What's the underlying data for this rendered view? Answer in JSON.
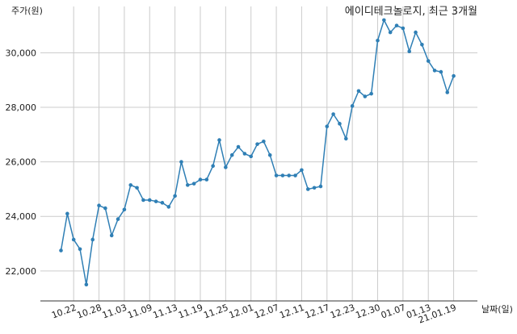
{
  "chart_data": {
    "type": "line",
    "title": "에이디테크놀로지, 최근 3개월",
    "ylabel": "주가(원)",
    "xlabel": "날짜(일)",
    "ylim": [
      20900,
      31700
    ],
    "yticks": [
      22000,
      24000,
      26000,
      28000,
      30000
    ],
    "ytick_labels": [
      "22,000",
      "24,000",
      "26,000",
      "28,000",
      "30,000"
    ],
    "xtick_labels": [
      "10.22",
      "10.28",
      "11.03",
      "11.09",
      "11.13",
      "11.19",
      "11.25",
      "12.01",
      "12.07",
      "12.11",
      "12.17",
      "12.23",
      "12.30",
      "01.07",
      "01.13",
      "21.01.19"
    ],
    "xtick_index": [
      2,
      6,
      10,
      14,
      18,
      22,
      26,
      30,
      34,
      38,
      42,
      46,
      50,
      54,
      58,
      62
    ],
    "grid": true,
    "series": [
      {
        "color": "#2f7fb5",
        "values": [
          22750,
          24100,
          23150,
          22800,
          21500,
          23150,
          24400,
          24300,
          23300,
          23900,
          24250,
          25150,
          25050,
          24600,
          24600,
          24550,
          24500,
          24350,
          24750,
          26000,
          25150,
          25200,
          25350,
          25350,
          25850,
          26800,
          25800,
          26250,
          26550,
          26300,
          26200,
          26650,
          26750,
          26250,
          25500,
          25500,
          25500,
          25500,
          25700,
          25000,
          25050,
          25100,
          27300,
          27750,
          27400,
          26850,
          28050,
          28600,
          28400,
          28500,
          30450,
          31200,
          30750,
          31000,
          30900,
          30050,
          30750,
          30300,
          29700,
          29350,
          29300,
          28550,
          29150
        ]
      }
    ]
  }
}
